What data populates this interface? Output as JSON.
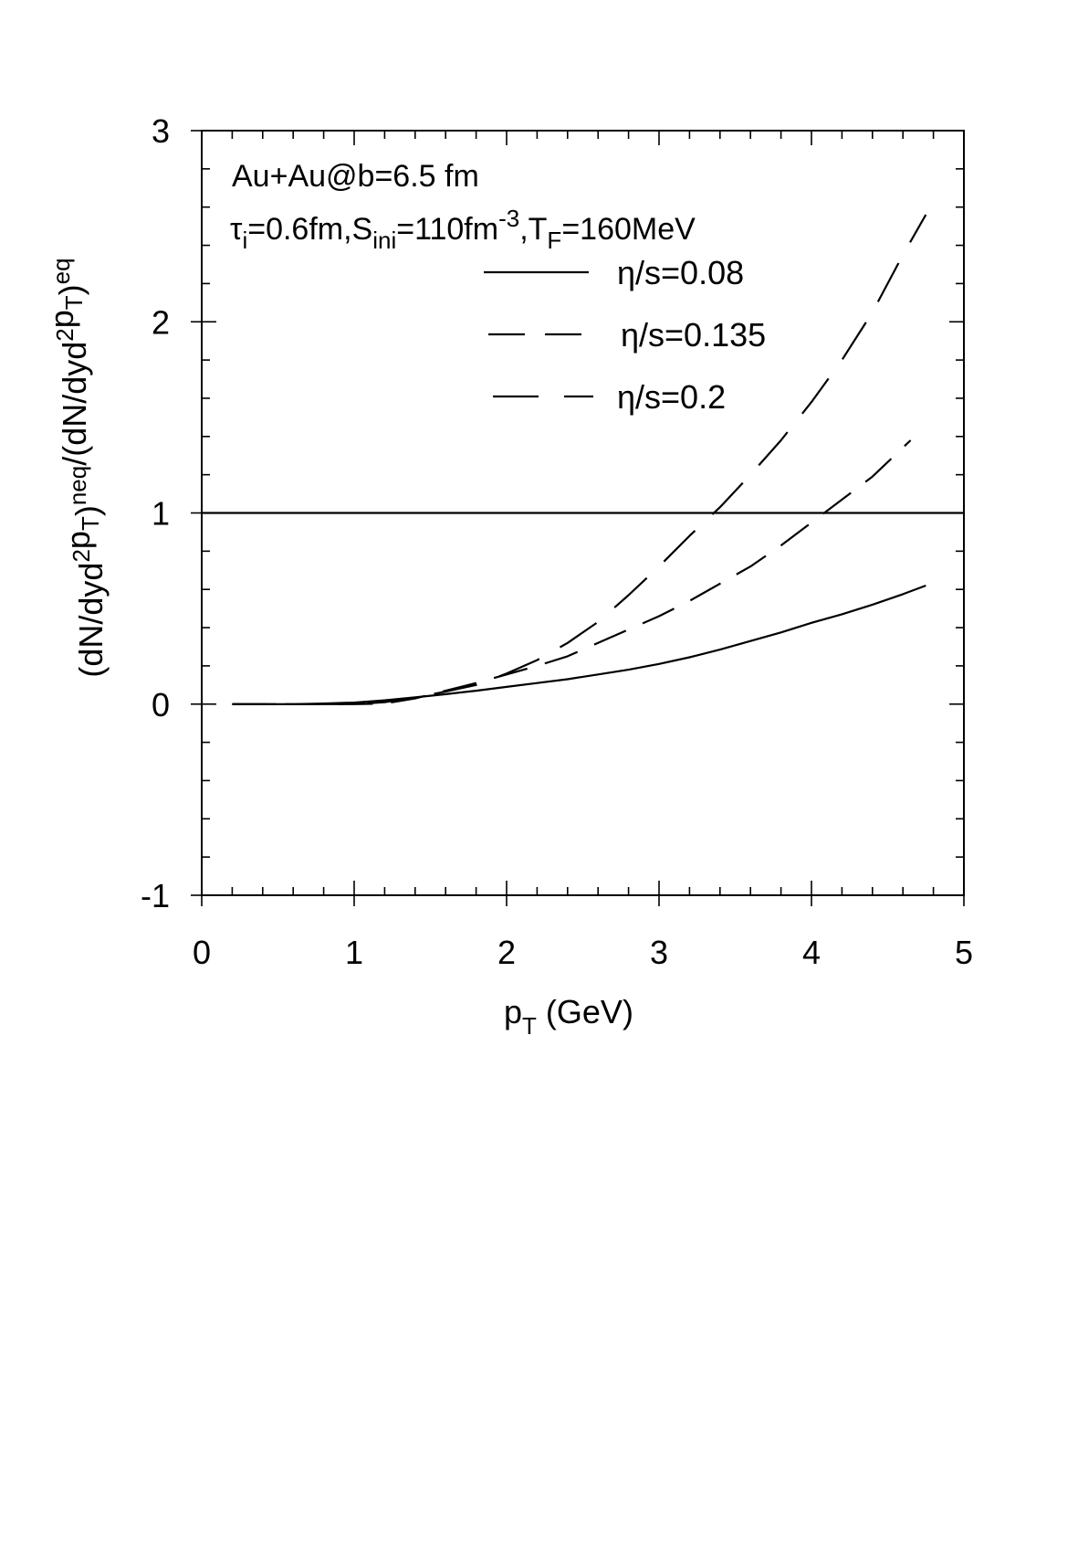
{
  "chart_data": {
    "type": "line",
    "xlabel": {
      "main": "p",
      "sub": "T",
      "rest": " (GeV)"
    },
    "ylabel": {
      "parts": [
        {
          "t": "(dN/dyd",
          "s": "n"
        },
        {
          "t": "2",
          "s": "sup"
        },
        {
          "t": "p",
          "s": "n"
        },
        {
          "t": "T",
          "s": "sub"
        },
        {
          "t": ")",
          "s": "n"
        },
        {
          "t": "neq",
          "s": "sup"
        },
        {
          "t": "/(dN/dyd",
          "s": "n"
        },
        {
          "t": "2",
          "s": "sup"
        },
        {
          "t": "p",
          "s": "n"
        },
        {
          "t": "T",
          "s": "sub"
        },
        {
          "t": ")",
          "s": "n"
        },
        {
          "t": "eq",
          "s": "sup"
        }
      ]
    },
    "xlim": [
      0,
      5
    ],
    "ylim": [
      -1,
      3
    ],
    "xticks": [
      "0",
      "1",
      "2",
      "3",
      "4",
      "5"
    ],
    "yticks": [
      "-1",
      "0",
      "1",
      "2",
      "3"
    ],
    "annotations": {
      "line1": "Au+Au@b=6.5 fm",
      "line2": {
        "tau": "τ",
        "tau_sub": "i",
        "a": "=0.6fm,S",
        "s_sub": "ini",
        "b": "=110fm",
        "exp": "-3",
        "c": ",T",
        "t_sub": "F",
        "d": "=160MeV"
      }
    },
    "reference_line": {
      "y": 1
    },
    "series": [
      {
        "name": "η/s=0.08",
        "style": "solid",
        "x": [
          0.2,
          0.4,
          0.6,
          0.8,
          1.0,
          1.2,
          1.4,
          1.6,
          1.8,
          2.0,
          2.2,
          2.4,
          2.6,
          2.8,
          3.0,
          3.2,
          3.4,
          3.6,
          3.8,
          4.0,
          4.2,
          4.4,
          4.6,
          4.75
        ],
        "y": [
          0.0,
          0.0,
          0.0,
          0.003,
          0.008,
          0.02,
          0.035,
          0.052,
          0.07,
          0.09,
          0.11,
          0.13,
          0.155,
          0.18,
          0.21,
          0.245,
          0.285,
          0.33,
          0.375,
          0.425,
          0.47,
          0.52,
          0.575,
          0.62
        ]
      },
      {
        "name": "η/s=0.135",
        "style": "dashed",
        "x": [
          0.2,
          0.6,
          1.0,
          1.2,
          1.4,
          1.6,
          1.8,
          2.0,
          2.2,
          2.4,
          2.6,
          2.8,
          3.0,
          3.2,
          3.4,
          3.6,
          3.8,
          4.0,
          4.2,
          4.4,
          4.65
        ],
        "y": [
          0.0,
          0.0,
          0.0,
          0.003,
          0.03,
          0.07,
          0.11,
          0.155,
          0.2,
          0.25,
          0.32,
          0.39,
          0.46,
          0.54,
          0.63,
          0.72,
          0.83,
          0.95,
          1.07,
          1.19,
          1.38
        ]
      },
      {
        "name": "η/s=0.2",
        "style": "longdash",
        "x": [
          0.2,
          0.6,
          1.0,
          1.2,
          1.4,
          1.6,
          1.8,
          2.0,
          2.2,
          2.4,
          2.6,
          2.8,
          3.0,
          3.2,
          3.4,
          3.6,
          3.8,
          4.0,
          4.2,
          4.4,
          4.6,
          4.75
        ],
        "y": [
          0.0,
          0.0,
          0.0,
          0.01,
          0.035,
          0.065,
          0.1,
          0.16,
          0.23,
          0.32,
          0.43,
          0.57,
          0.72,
          0.88,
          1.03,
          1.2,
          1.38,
          1.58,
          1.8,
          2.05,
          2.35,
          2.56
        ]
      }
    ],
    "legend_placement": "top-right-inside"
  }
}
